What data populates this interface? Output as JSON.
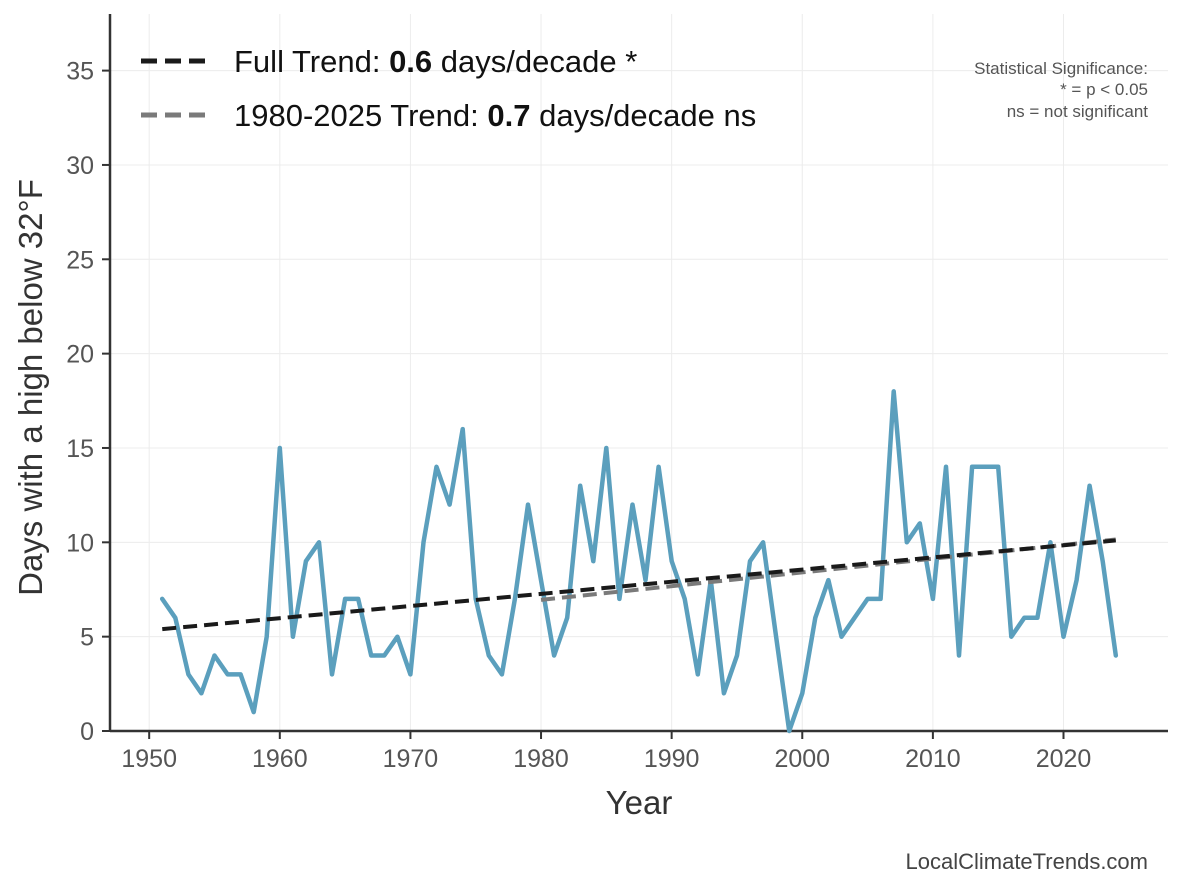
{
  "chart_data": {
    "type": "line",
    "xlabel": "Year",
    "ylabel": "Days with a high below 32°F",
    "xlim": [
      1947,
      2028
    ],
    "ylim": [
      0,
      38
    ],
    "xticks": [
      1950,
      1960,
      1970,
      1980,
      1990,
      2000,
      2010,
      2020
    ],
    "yticks": [
      0,
      5,
      10,
      15,
      20,
      25,
      30,
      35
    ],
    "grid": true,
    "legend_position": "top-left",
    "series": [
      {
        "name": "Days with a high below 32°F",
        "color": "#5b9fbd",
        "x": [
          1951,
          1952,
          1953,
          1954,
          1955,
          1956,
          1957,
          1958,
          1959,
          1960,
          1961,
          1962,
          1963,
          1964,
          1965,
          1966,
          1967,
          1968,
          1969,
          1970,
          1971,
          1972,
          1973,
          1974,
          1975,
          1976,
          1977,
          1978,
          1979,
          1980,
          1981,
          1982,
          1983,
          1984,
          1985,
          1986,
          1987,
          1988,
          1989,
          1990,
          1991,
          1992,
          1993,
          1994,
          1995,
          1996,
          1997,
          1998,
          1999,
          2000,
          2001,
          2002,
          2003,
          2004,
          2005,
          2006,
          2007,
          2008,
          2009,
          2010,
          2011,
          2012,
          2013,
          2014,
          2015,
          2016,
          2017,
          2018,
          2019,
          2020,
          2021,
          2022,
          2023,
          2024
        ],
        "y": [
          7,
          6,
          3,
          2,
          4,
          3,
          3,
          1,
          5,
          15,
          5,
          9,
          10,
          3,
          7,
          7,
          4,
          4,
          5,
          3,
          10,
          14,
          12,
          16,
          7,
          4,
          3,
          7,
          12,
          8,
          4,
          6,
          13,
          9,
          15,
          7,
          12,
          8,
          14,
          9,
          7,
          3,
          8,
          2,
          4,
          9,
          10,
          5,
          0,
          2,
          6,
          8,
          5,
          6,
          7,
          7,
          18,
          10,
          11,
          7,
          14,
          4,
          14,
          14,
          14,
          5,
          6,
          6,
          10,
          5,
          8,
          13,
          9,
          4
        ]
      }
    ],
    "trends": [
      {
        "name": "Full Trend",
        "label_prefix": "Full Trend: ",
        "value": "0.6",
        "label_suffix": " days/decade *",
        "color": "#1a1a1a",
        "x": [
          1951,
          2024
        ],
        "y": [
          5.4,
          10.1
        ]
      },
      {
        "name": "1980-2025 Trend",
        "label_prefix": "1980-2025 Trend: ",
        "value": "0.7",
        "label_suffix": " days/decade ns",
        "color": "#7a7a7a",
        "x": [
          1980,
          2024
        ],
        "y": [
          6.95,
          10.15
        ]
      }
    ],
    "significance_note": {
      "title": "Statistical Significance:",
      "line1": "* = p < 0.05",
      "line2": "ns = not significant"
    },
    "source": "LocalClimateTrends.com"
  }
}
